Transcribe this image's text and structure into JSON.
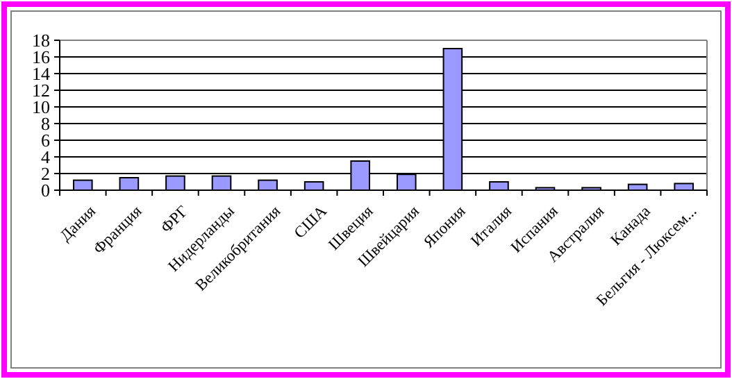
{
  "chart_data": {
    "type": "bar",
    "categories": [
      "Дания",
      "Франция",
      "ФРГ",
      "Нидерланды",
      "Великобритания",
      "США",
      "Швеция",
      "Швейцария",
      "Япония",
      "Италия",
      "Испания",
      "Австралия",
      "Канада",
      "Бельгия - Люксем..."
    ],
    "values": [
      1.2,
      1.5,
      1.7,
      1.7,
      1.2,
      1.0,
      3.5,
      1.9,
      17.0,
      1.0,
      0.3,
      0.3,
      0.7,
      0.8
    ],
    "color": "#9999ff",
    "ylim": [
      0,
      18
    ],
    "yticks": [
      0,
      2,
      4,
      6,
      8,
      10,
      12,
      14,
      16,
      18
    ],
    "grid": "y"
  }
}
